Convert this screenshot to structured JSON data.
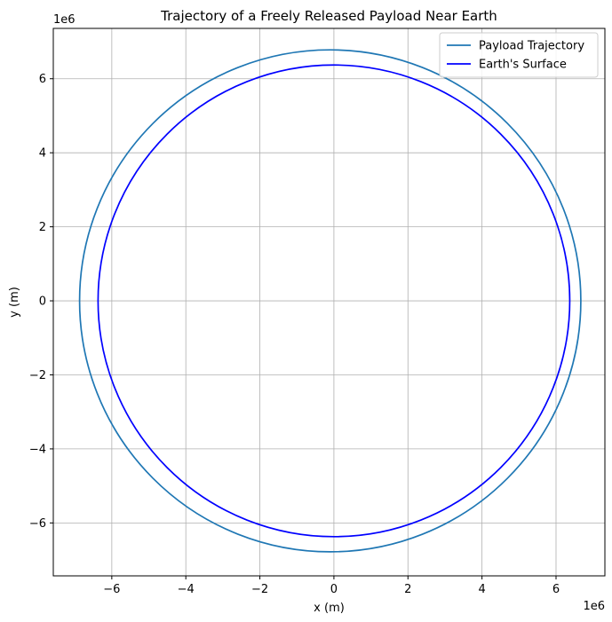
{
  "chart_data": {
    "type": "line",
    "title": "Trajectory of a Freely Released Payload Near Earth",
    "xlabel": "x (m)",
    "ylabel": "y (m)",
    "x_offset_text": "1e6",
    "y_offset_text": "1e6",
    "xlim": [
      -7.58,
      7.32
    ],
    "ylim": [
      -7.43,
      7.36
    ],
    "x_ticks": [
      -6,
      -4,
      -2,
      0,
      2,
      4,
      6
    ],
    "y_ticks": [
      -6,
      -4,
      -2,
      0,
      2,
      4,
      6
    ],
    "x_tick_labels": [
      "−6",
      "−4",
      "−2",
      "0",
      "2",
      "4",
      "6"
    ],
    "y_tick_labels": [
      "−6",
      "−4",
      "−2",
      "0",
      "2",
      "4",
      "6"
    ],
    "grid": true,
    "legend_position": "upper right",
    "series": [
      {
        "name": "Payload Trajectory",
        "color": "#1f77b4",
        "shape": "ellipse",
        "center": [
          -0.1,
          0.0
        ],
        "semi_major": 6.77,
        "semi_minor": 6.78
      },
      {
        "name": "Earth's Surface",
        "color": "#0000ff",
        "shape": "circle",
        "center": [
          0,
          0
        ],
        "radius": 6.371
      }
    ]
  }
}
